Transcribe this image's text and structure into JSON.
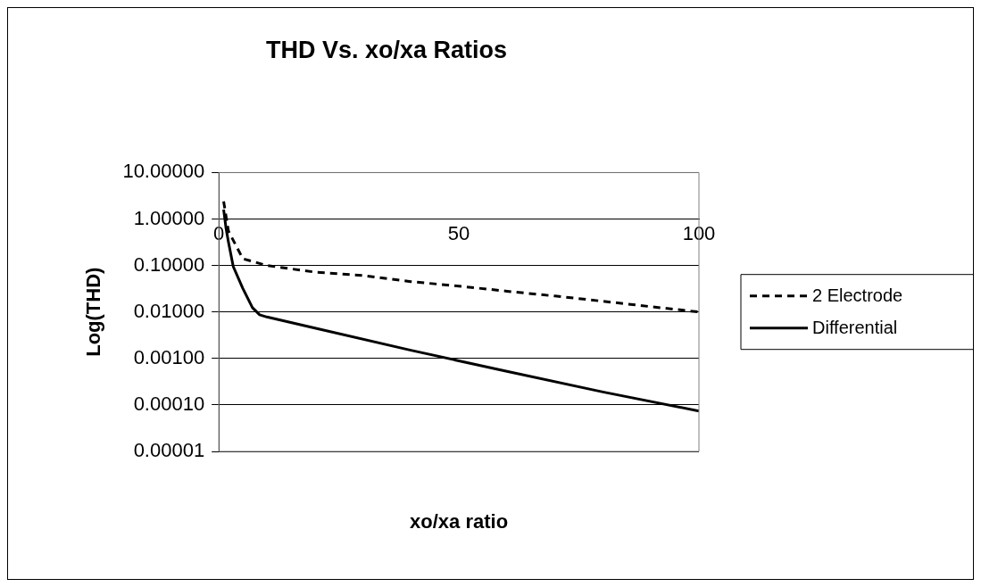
{
  "chart_data": {
    "type": "line",
    "title": "THD Vs. xo/xa Ratios",
    "xlabel": "xo/xa ratio",
    "ylabel": "Log(THD)",
    "series": [
      {
        "name": "2 Electrode",
        "color": "#000000",
        "line_style": "dashed",
        "x": [
          1,
          2,
          5,
          10,
          20,
          30,
          40,
          50,
          60,
          70,
          80,
          90,
          100
        ],
        "values": [
          2.4,
          0.55,
          0.14,
          0.1,
          0.072,
          0.061,
          0.045,
          0.036,
          0.028,
          0.022,
          0.017,
          0.013,
          0.01
        ]
      },
      {
        "name": "Differential",
        "color": "#000000",
        "line_style": "solid",
        "x": [
          1,
          1.5,
          2,
          3,
          5,
          7,
          8.5,
          10,
          20,
          40,
          50,
          60,
          80,
          100
        ],
        "values": [
          1.6,
          0.63,
          0.32,
          0.095,
          0.032,
          0.0124,
          0.0087,
          0.0078,
          0.0045,
          0.0015,
          0.00089,
          0.00053,
          0.00019,
          7.4e-05
        ]
      }
    ],
    "xlim": [
      0,
      100
    ],
    "xticks": [
      0,
      50,
      100
    ],
    "ylim": [
      1e-05,
      10
    ],
    "yticks": [
      {
        "value": 1e-05,
        "label": "0.00001"
      },
      {
        "value": 0.0001,
        "label": "0.00010"
      },
      {
        "value": 0.001,
        "label": "0.00100"
      },
      {
        "value": 0.01,
        "label": "0.01000"
      },
      {
        "value": 0.1,
        "label": "0.10000"
      },
      {
        "value": 1,
        "label": "1.00000"
      },
      {
        "value": 10,
        "label": "10.00000"
      }
    ],
    "log": "y",
    "grid": "y",
    "legend": "right"
  }
}
